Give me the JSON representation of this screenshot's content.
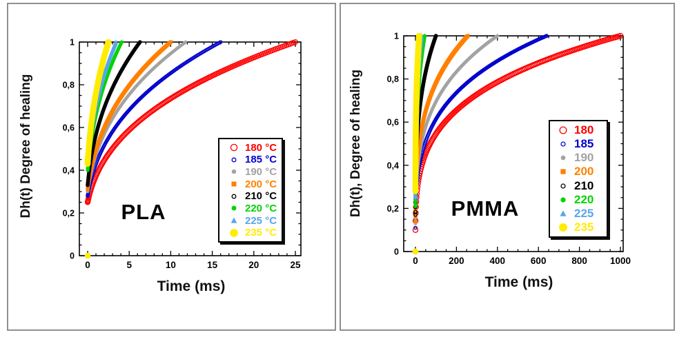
{
  "chart_data": [
    {
      "type": "scatter",
      "title": "PLA",
      "xlabel": "Time (ms)",
      "ylabel": "Dh(t) Degree of healing",
      "xlim": [
        0,
        25
      ],
      "ylim": [
        0,
        1
      ],
      "x_tick_values": [
        0,
        5,
        10,
        15,
        20,
        25
      ],
      "x_tick_labels": [
        "0",
        "5",
        "10",
        "15",
        "20",
        "25"
      ],
      "y_tick_values": [
        0,
        0.2,
        0.4,
        0.6,
        0.8,
        1
      ],
      "y_tick_labels": [
        "0",
        "0,2",
        "0,4",
        "0,6",
        "0,8",
        "1"
      ],
      "x_minor_step": 1,
      "y_minor_step": 0.05,
      "grid": false,
      "legend_position": "lower right",
      "curve_model": "Dh(t)=((t+t0)/(tau+t0))^(1/k), t0=tau*dh_start^k/(1-dh_start^k)",
      "k": 2.9,
      "series": [
        {
          "name": "180 °C",
          "color": "#FF0000",
          "marker": "circle-open",
          "marker_size": 3.4,
          "tau_ms": 25,
          "dh_start": 0.25
        },
        {
          "name": "185 °C",
          "color": "#0000CC",
          "marker": "circle-open",
          "marker_size": 2.1,
          "tau_ms": 16,
          "dh_start": 0.28
        },
        {
          "name": "190 °C",
          "color": "#A3A3A3",
          "marker": "circle",
          "marker_size": 2.4,
          "tau_ms": 11.8,
          "dh_start": 0.3
        },
        {
          "name": "200 °C",
          "color": "#FF8000",
          "marker": "square",
          "marker_size": 2.6,
          "tau_ms": 10,
          "dh_start": 0.31
        },
        {
          "name": "210 °C",
          "color": "#000000",
          "marker": "circle-open",
          "marker_size": 2.1,
          "tau_ms": 6.3,
          "dh_start": 0.33
        },
        {
          "name": "220 °C",
          "color": "#00D400",
          "marker": "circle",
          "marker_size": 2.6,
          "tau_ms": 4.1,
          "dh_start": 0.4
        },
        {
          "name": "225 °C",
          "color": "#58A6E8",
          "marker": "triangle",
          "marker_size": 2.8,
          "tau_ms": 3.4,
          "dh_start": 0.44
        },
        {
          "name": "235 °C",
          "color": "#FFEC00",
          "marker": "circle",
          "marker_size": 4.3,
          "tau_ms": 2.5,
          "dh_start": 0.43,
          "origin_point": [
            0,
            0
          ]
        }
      ]
    },
    {
      "type": "scatter",
      "title": "PMMA",
      "xlabel": "Time (ms)",
      "ylabel": "Dh(t), Degree of healing",
      "xlim": [
        0,
        1000
      ],
      "ylim": [
        0,
        1
      ],
      "x_tick_values": [
        0,
        200,
        400,
        600,
        800,
        1000
      ],
      "x_tick_labels": [
        "0",
        "200",
        "400",
        "600",
        "800",
        "1000"
      ],
      "y_tick_values": [
        0,
        0.2,
        0.4,
        0.6,
        0.8,
        1
      ],
      "y_tick_labels": [
        "0",
        "0,2",
        "0,4",
        "0,6",
        "0,8",
        "1"
      ],
      "x_minor_step": 50,
      "y_minor_step": 0.05,
      "grid": false,
      "legend_position": "lower right",
      "curve_model": "Dh(t)=((t+t0)/(tau+t0))^(1/k), t0=tau*dh_start^k/(1-dh_start^k)",
      "k": 3.8,
      "series": [
        {
          "name": "180",
          "color": "#FF0000",
          "marker": "circle-open",
          "marker_size": 3.6,
          "tau_ms": 1000,
          "dh_start": 0.1
        },
        {
          "name": "185",
          "color": "#0000CC",
          "marker": "circle-open",
          "marker_size": 2.2,
          "tau_ms": 640,
          "dh_start": 0.11
        },
        {
          "name": "190",
          "color": "#A3A3A3",
          "marker": "circle",
          "marker_size": 2.5,
          "tau_ms": 400,
          "dh_start": 0.13
        },
        {
          "name": "200",
          "color": "#FF8000",
          "marker": "square",
          "marker_size": 2.7,
          "tau_ms": 255,
          "dh_start": 0.14
        },
        {
          "name": "210",
          "color": "#000000",
          "marker": "circle-open",
          "marker_size": 2.2,
          "tau_ms": 100,
          "dh_start": 0.17
        },
        {
          "name": "220",
          "color": "#00D400",
          "marker": "circle",
          "marker_size": 2.7,
          "tau_ms": 45,
          "dh_start": 0.21
        },
        {
          "name": "225",
          "color": "#58A6E8",
          "marker": "triangle",
          "marker_size": 2.9,
          "tau_ms": 30,
          "dh_start": 0.25
        },
        {
          "name": "235",
          "color": "#FFEC00",
          "marker": "circle",
          "marker_size": 4.4,
          "tau_ms": 18,
          "dh_start": 0.28,
          "origin_point": [
            0,
            0
          ]
        }
      ]
    }
  ]
}
